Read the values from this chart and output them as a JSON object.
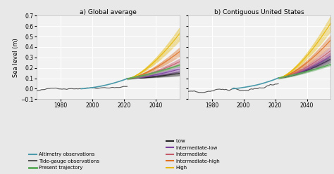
{
  "title_left": "a) Global average",
  "title_right": "b) Contiguous United States",
  "ylabel": "Sea level (m)",
  "xlim": [
    1965,
    2055
  ],
  "ylim": [
    -0.1,
    0.7
  ],
  "xticks": [
    1980,
    2000,
    2020,
    2040
  ],
  "yticks": [
    -0.1,
    0.0,
    0.1,
    0.2,
    0.3,
    0.4,
    0.5,
    0.6,
    0.7
  ],
  "bg_color": "#f2f2f2",
  "grid_color": "#ffffff",
  "fig_color": "#e8e8e8",
  "colors": {
    "altimetry": "#4a9aab",
    "tide_gauge": "#555555",
    "present_trajectory": "#5aaa5a",
    "low": "#222222",
    "intermediate_low": "#7b3fa0",
    "intermediate": "#c45a6a",
    "intermediate_high": "#e07020",
    "high": "#e8b800"
  },
  "legend_labels_left": [
    "Altimetry observations",
    "Tide-gauge observations",
    "Present trajectory"
  ],
  "legend_labels_right": [
    "Low",
    "Intermediate-low",
    "Intermediate",
    "Intermediate-high",
    "High"
  ],
  "proj_end_global": {
    "low": 0.145,
    "intermediate_low": 0.185,
    "intermediate": 0.255,
    "intermediate_high": 0.35,
    "high": 0.52
  },
  "proj_end_us": {
    "low": 0.28,
    "intermediate_low": 0.31,
    "intermediate": 0.36,
    "intermediate_high": 0.46,
    "high": 0.62
  },
  "n_fan_lines": 10
}
